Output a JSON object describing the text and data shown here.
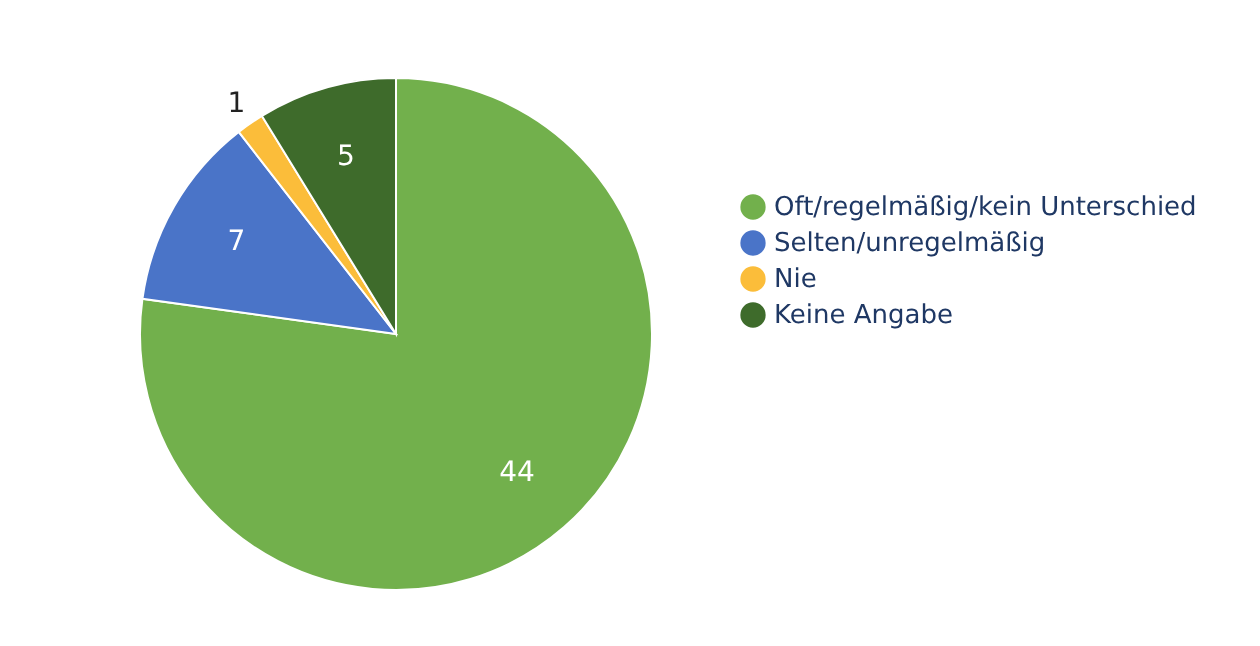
{
  "chart_data": {
    "type": "pie",
    "categories": [
      "Oft/regelmäßig/kein Unterschied",
      "Selten/unregelmäßig",
      "Nie",
      "Keine Angabe"
    ],
    "values": [
      44,
      7,
      1,
      5
    ],
    "colors": [
      "#72b04c",
      "#4a74c8",
      "#fbbd3a",
      "#3e6b2b"
    ],
    "data_labels": true,
    "legend": "right"
  }
}
